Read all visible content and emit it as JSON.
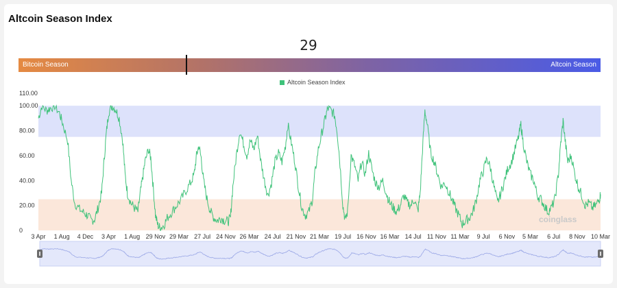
{
  "page": {
    "title": "Altcoin Season Index"
  },
  "indicator": {
    "current_value": "29",
    "value_number": 29,
    "left_label": "Bitcoin Season",
    "right_label": "Altcoin Season",
    "gradient_colors": [
      "#e58a42",
      "#4a5be6"
    ]
  },
  "watermark": "coinglass",
  "chart_data": {
    "type": "line",
    "title": "",
    "xlabel": "",
    "ylabel": "",
    "legend": {
      "position": "top-center",
      "entries": [
        "Altcoin Season Index"
      ]
    },
    "ylim": [
      0,
      110
    ],
    "y_ticks": [
      "110.00",
      "100.00",
      "80.00",
      "60.00",
      "40.00",
      "20.00",
      "0"
    ],
    "x_ticks": [
      "3 Apr",
      "1 Aug",
      "4 Dec",
      "3 Apr",
      "1 Aug",
      "29 Nov",
      "29 Mar",
      "27 Jul",
      "24 Nov",
      "26 Mar",
      "24 Jul",
      "21 Nov",
      "21 Mar",
      "19 Jul",
      "16 Nov",
      "16 Mar",
      "14 Jul",
      "11 Nov",
      "11 Mar",
      "9 Jul",
      "6 Nov",
      "5 Mar",
      "6 Jul",
      "8 Nov",
      "10 Mar"
    ],
    "bands": [
      {
        "name": "altcoin-season",
        "from": 75,
        "to": 100,
        "color": "#dde2fb"
      },
      {
        "name": "bitcoin-season",
        "from": 0,
        "to": 25,
        "color": "#fbe7da"
      }
    ],
    "series": [
      {
        "name": "Altcoin Season Index",
        "color": "#3fc27a",
        "points": [
          [
            0,
            90
          ],
          [
            0.15,
            100
          ],
          [
            0.35,
            96
          ],
          [
            0.5,
            98
          ],
          [
            0.7,
            100
          ],
          [
            0.9,
            94
          ],
          [
            1.05,
            85
          ],
          [
            1.25,
            72
          ],
          [
            1.4,
            40
          ],
          [
            1.55,
            22
          ],
          [
            1.75,
            17
          ],
          [
            1.95,
            14
          ],
          [
            2.1,
            12
          ],
          [
            2.25,
            8
          ],
          [
            2.4,
            9
          ],
          [
            2.55,
            18
          ],
          [
            2.7,
            30
          ],
          [
            2.8,
            55
          ],
          [
            2.9,
            78
          ],
          [
            3.0,
            95
          ],
          [
            3.15,
            100
          ],
          [
            3.3,
            97
          ],
          [
            3.45,
            90
          ],
          [
            3.6,
            72
          ],
          [
            3.7,
            45
          ],
          [
            3.8,
            30
          ],
          [
            3.95,
            22
          ],
          [
            4.1,
            18
          ],
          [
            4.25,
            15
          ],
          [
            4.35,
            30
          ],
          [
            4.45,
            42
          ],
          [
            4.55,
            55
          ],
          [
            4.7,
            65
          ],
          [
            4.8,
            58
          ],
          [
            4.9,
            35
          ],
          [
            5.0,
            12
          ],
          [
            5.1,
            4
          ],
          [
            5.2,
            2
          ],
          [
            5.35,
            4
          ],
          [
            5.5,
            10
          ],
          [
            5.7,
            15
          ],
          [
            5.9,
            20
          ],
          [
            6.1,
            25
          ],
          [
            6.3,
            32
          ],
          [
            6.5,
            38
          ],
          [
            6.65,
            45
          ],
          [
            6.75,
            60
          ],
          [
            6.85,
            68
          ],
          [
            6.95,
            58
          ],
          [
            7.05,
            40
          ],
          [
            7.2,
            25
          ],
          [
            7.35,
            15
          ],
          [
            7.5,
            10
          ],
          [
            7.65,
            8
          ],
          [
            7.8,
            10
          ],
          [
            7.95,
            8
          ],
          [
            8.1,
            7
          ],
          [
            8.2,
            10
          ],
          [
            8.3,
            35
          ],
          [
            8.45,
            60
          ],
          [
            8.6,
            80
          ],
          [
            8.75,
            70
          ],
          [
            8.9,
            60
          ],
          [
            9.05,
            72
          ],
          [
            9.2,
            65
          ],
          [
            9.35,
            76
          ],
          [
            9.5,
            55
          ],
          [
            9.65,
            40
          ],
          [
            9.8,
            28
          ],
          [
            9.95,
            38
          ],
          [
            10.1,
            55
          ],
          [
            10.25,
            62
          ],
          [
            10.4,
            55
          ],
          [
            10.55,
            68
          ],
          [
            10.65,
            85
          ],
          [
            10.8,
            70
          ],
          [
            10.95,
            55
          ],
          [
            11.1,
            35
          ],
          [
            11.25,
            18
          ],
          [
            11.4,
            12
          ],
          [
            11.55,
            15
          ],
          [
            11.7,
            25
          ],
          [
            11.8,
            45
          ],
          [
            11.95,
            65
          ],
          [
            12.1,
            78
          ],
          [
            12.25,
            90
          ],
          [
            12.35,
            98
          ],
          [
            12.5,
            96
          ],
          [
            12.65,
            92
          ],
          [
            12.75,
            80
          ],
          [
            12.85,
            60
          ],
          [
            13.0,
            20
          ],
          [
            13.1,
            8
          ],
          [
            13.2,
            15
          ],
          [
            13.35,
            60
          ],
          [
            13.5,
            52
          ],
          [
            13.65,
            40
          ],
          [
            13.8,
            55
          ],
          [
            13.95,
            45
          ],
          [
            14.1,
            62
          ],
          [
            14.25,
            48
          ],
          [
            14.4,
            38
          ],
          [
            14.55,
            35
          ],
          [
            14.7,
            40
          ],
          [
            14.85,
            30
          ],
          [
            15.0,
            22
          ],
          [
            15.15,
            18
          ],
          [
            15.3,
            15
          ],
          [
            15.45,
            20
          ],
          [
            15.6,
            28
          ],
          [
            15.75,
            22
          ],
          [
            15.9,
            20
          ],
          [
            16.05,
            25
          ],
          [
            16.2,
            15
          ],
          [
            16.3,
            30
          ],
          [
            16.4,
            65
          ],
          [
            16.5,
            96
          ],
          [
            16.6,
            85
          ],
          [
            16.75,
            62
          ],
          [
            16.9,
            55
          ],
          [
            17.05,
            45
          ],
          [
            17.2,
            35
          ],
          [
            17.35,
            38
          ],
          [
            17.5,
            32
          ],
          [
            17.65,
            25
          ],
          [
            17.8,
            18
          ],
          [
            17.95,
            12
          ],
          [
            18.1,
            5
          ],
          [
            18.25,
            8
          ],
          [
            18.4,
            10
          ],
          [
            18.55,
            15
          ],
          [
            18.7,
            25
          ],
          [
            18.85,
            40
          ],
          [
            19.0,
            48
          ],
          [
            19.15,
            58
          ],
          [
            19.3,
            50
          ],
          [
            19.45,
            35
          ],
          [
            19.6,
            22
          ],
          [
            19.75,
            30
          ],
          [
            19.9,
            40
          ],
          [
            20.05,
            50
          ],
          [
            20.2,
            55
          ],
          [
            20.35,
            65
          ],
          [
            20.5,
            75
          ],
          [
            20.6,
            85
          ],
          [
            20.7,
            70
          ],
          [
            20.85,
            55
          ],
          [
            21.0,
            45
          ],
          [
            21.15,
            40
          ],
          [
            21.3,
            28
          ],
          [
            21.45,
            25
          ],
          [
            21.6,
            20
          ],
          [
            21.75,
            15
          ],
          [
            21.9,
            18
          ],
          [
            22.05,
            25
          ],
          [
            22.2,
            45
          ],
          [
            22.3,
            70
          ],
          [
            22.4,
            88
          ],
          [
            22.5,
            70
          ],
          [
            22.6,
            55
          ],
          [
            22.75,
            60
          ],
          [
            22.9,
            45
          ],
          [
            23.05,
            35
          ],
          [
            23.2,
            28
          ],
          [
            23.35,
            20
          ],
          [
            23.5,
            22
          ],
          [
            23.65,
            18
          ],
          [
            23.8,
            20
          ],
          [
            23.95,
            25
          ],
          [
            24.0,
            29
          ]
        ]
      }
    ]
  }
}
